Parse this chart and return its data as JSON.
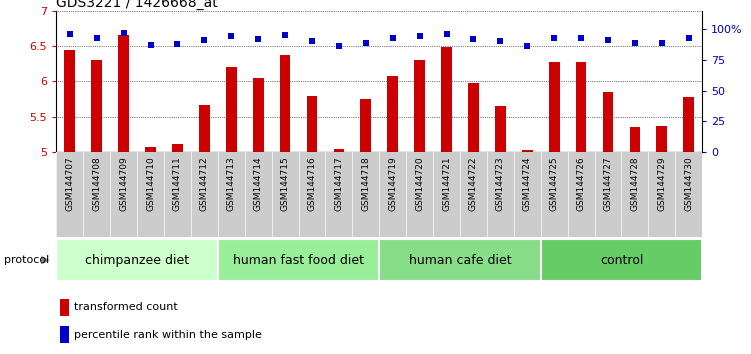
{
  "title": "GDS3221 / 1426668_at",
  "samples": [
    "GSM144707",
    "GSM144708",
    "GSM144709",
    "GSM144710",
    "GSM144711",
    "GSM144712",
    "GSM144713",
    "GSM144714",
    "GSM144715",
    "GSM144716",
    "GSM144717",
    "GSM144718",
    "GSM144719",
    "GSM144720",
    "GSM144721",
    "GSM144722",
    "GSM144723",
    "GSM144724",
    "GSM144725",
    "GSM144726",
    "GSM144727",
    "GSM144728",
    "GSM144729",
    "GSM144730"
  ],
  "bar_values": [
    6.45,
    6.3,
    6.65,
    5.08,
    5.12,
    5.67,
    6.2,
    6.05,
    6.38,
    5.8,
    5.05,
    5.75,
    6.08,
    6.3,
    6.48,
    5.98,
    5.65,
    5.03,
    6.28,
    6.28,
    5.85,
    5.35,
    5.37,
    5.78
  ],
  "percentile_values": [
    96,
    93,
    97,
    87,
    88,
    91,
    94,
    92,
    95,
    90,
    86,
    89,
    93,
    94,
    96,
    92,
    90,
    86,
    93,
    93,
    91,
    89,
    89,
    93
  ],
  "bar_color": "#cc0000",
  "percentile_color": "#0000cc",
  "ylim_left": [
    5.0,
    7.0
  ],
  "yticks_left": [
    5.0,
    5.5,
    6.0,
    6.5,
    7.0
  ],
  "yticks_right": [
    0,
    25,
    50,
    75,
    100
  ],
  "groups": [
    {
      "label": "chimpanzee diet",
      "start": 0,
      "end": 5
    },
    {
      "label": "human fast food diet",
      "start": 6,
      "end": 11
    },
    {
      "label": "human cafe diet",
      "start": 12,
      "end": 17
    },
    {
      "label": "control",
      "start": 18,
      "end": 23
    }
  ],
  "group_colors": [
    "#ccffcc",
    "#99ee99",
    "#88dd88",
    "#66cc66"
  ],
  "legend_bar_label": "transformed count",
  "legend_pct_label": "percentile rank within the sample",
  "protocol_label": "protocol",
  "title_fontsize": 10,
  "tick_fontsize": 8,
  "label_fontsize": 8,
  "group_fontsize": 9,
  "xtick_fontsize": 6.5,
  "xtick_label_bg": "#d8d8d8",
  "chart_bg": "#ffffff"
}
